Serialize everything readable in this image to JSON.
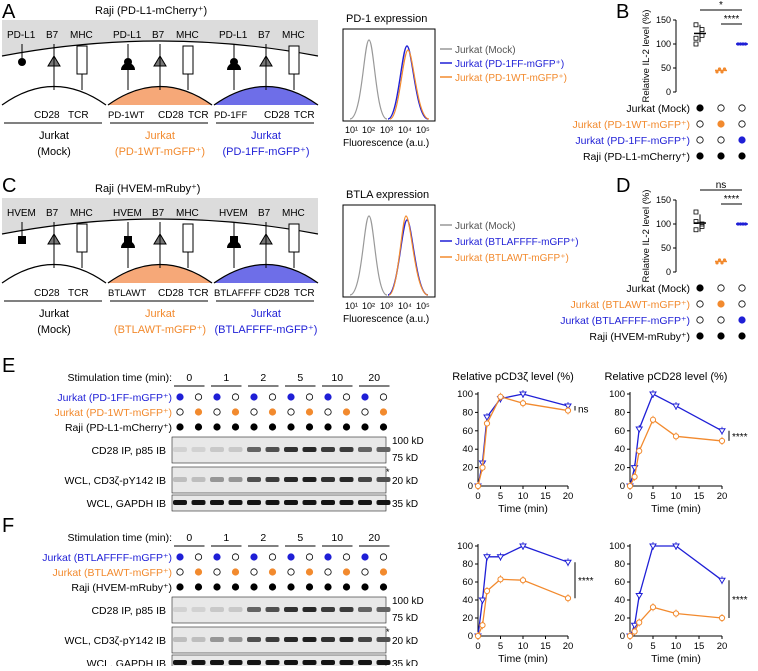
{
  "colors": {
    "blue": "#1f1fd6",
    "orange": "#f28a2e",
    "gray": "#999999",
    "light_gray": "#dcdcdc",
    "orange_fill": "#f6a878",
    "blue_fill": "#6e6ee8"
  },
  "panel_letters": [
    "A",
    "B",
    "C",
    "D",
    "E",
    "F"
  ],
  "panelA": {
    "raji_label": "Raji (PD-L1-mCherry⁺)",
    "cells": [
      {
        "top_labels": [
          "PD-L1",
          "B7",
          "MHC"
        ],
        "bottom_labels": [
          "CD28",
          "TCR"
        ],
        "name": [
          "Jurkat",
          "(Mock)"
        ]
      },
      {
        "top_labels": [
          "PD-L1",
          "B7",
          "MHC"
        ],
        "bottom_labels": [
          "PD-1WT",
          "CD28",
          "TCR"
        ],
        "name": [
          "Jurkat",
          "(PD-1WT-mGFP⁺)"
        ]
      },
      {
        "top_labels": [
          "PD-L1",
          "B7",
          "MHC"
        ],
        "bottom_labels": [
          "PD-1FF",
          "CD28",
          "TCR"
        ],
        "name": [
          "Jurkat",
          "(PD-1FF-mGFP⁺)"
        ]
      }
    ],
    "flow_title": "PD-1 expression",
    "flow_xlabel": "Fluorescence (a.u.)",
    "flow_ticks": [
      "10¹",
      "10²",
      "10³",
      "10⁴",
      "10⁵"
    ],
    "legend": [
      "Jurkat (Mock)",
      "Jurkat (PD-1FF-mGFP⁺)",
      "Jurkat (PD-1WT-mGFP⁺)"
    ]
  },
  "panelC": {
    "raji_label": "Raji (HVEM-mRuby⁺)",
    "cells": [
      {
        "top_labels": [
          "HVEM",
          "B7",
          "MHC"
        ],
        "bottom_labels": [
          "CD28",
          "TCR"
        ],
        "name": [
          "Jurkat",
          "(Mock)"
        ]
      },
      {
        "top_labels": [
          "HVEM",
          "B7",
          "MHC"
        ],
        "bottom_labels": [
          "BTLAWT",
          "CD28",
          "TCR"
        ],
        "name": [
          "Jurkat",
          "(BTLAWT-mGFP⁺)"
        ]
      },
      {
        "top_labels": [
          "HVEM",
          "B7",
          "MHC"
        ],
        "bottom_labels": [
          "BTLAFFFF",
          "CD28",
          "TCR"
        ],
        "name": [
          "Jurkat",
          "(BTLAFFFF-mGFP⁺)"
        ]
      }
    ],
    "flow_title": "BTLA expression",
    "flow_xlabel": "Fluorescence (a.u.)",
    "flow_ticks": [
      "10¹",
      "10²",
      "10³",
      "10⁴",
      "10⁵"
    ],
    "legend": [
      "Jurkat (Mock)",
      "Jurkat (BTLAFFFF-mGFP⁺)",
      "Jurkat (BTLAWT-mGFP⁺)"
    ]
  },
  "panelB": {
    "ylabel": "Relative IL-2 level (%)",
    "yticks": [
      "0",
      "50",
      "100",
      "150"
    ],
    "sig": [
      "*",
      "****"
    ],
    "rows": [
      "Jurkat (Mock)",
      "Jurkat (PD-1WT-mGFP⁺)",
      "Jurkat (PD-1FF-mGFP⁺)",
      "Raji (PD-L1-mCherry⁺)"
    ],
    "means": [
      122,
      45,
      100
    ],
    "mock_points": [
      140,
      130,
      112,
      118,
      100
    ]
  },
  "panelD": {
    "ylabel": "Relative IL-2 level (%)",
    "yticks": [
      "0",
      "50",
      "100",
      "150"
    ],
    "sig": [
      "ns",
      "****"
    ],
    "rows": [
      "Jurkat (Mock)",
      "Jurkat (BTLAWT-mGFP⁺)",
      "Jurkat (BTLAFFFF-mGFP⁺)",
      "Raji (HVEM-mRuby⁺)"
    ],
    "means": [
      102,
      22,
      100
    ],
    "mock_points": [
      125,
      100,
      88,
      95,
      105
    ]
  },
  "panelE": {
    "stim_label": "Stimulation time (min):",
    "times": [
      "0",
      "1",
      "2",
      "5",
      "10",
      "20"
    ],
    "row_labels": [
      "Jurkat (PD-1FF-mGFP⁺)",
      "Jurkat (PD-1WT-mGFP⁺)",
      "Raji (PD-L1-mCherry⁺)"
    ],
    "blot_labels": [
      "CD28 IP, p85 IB",
      "WCL, CD3ζ-pY142 IB",
      "WCL, GAPDH IB"
    ],
    "kd": [
      "100 kD",
      "75 kD",
      "20 kD",
      "35 kD"
    ],
    "star": "*"
  },
  "panelF": {
    "stim_label": "Stimulation time (min):",
    "times": [
      "0",
      "1",
      "2",
      "5",
      "10",
      "20"
    ],
    "row_labels": [
      "Jurkat (BTLAFFFF-mGFP⁺)",
      "Jurkat (BTLAWT-mGFP⁺)",
      "Raji (HVEM-mRuby⁺)"
    ],
    "blot_labels": [
      "CD28 IP, p85 IB",
      "WCL, CD3ζ-pY142 IB",
      "WCL, GAPDH IB"
    ],
    "kd": [
      "100 kD",
      "75 kD",
      "20 kD",
      "35 kD"
    ],
    "star": "*"
  },
  "chart_data": [
    {
      "type": "line",
      "title": "Relative pCD3ζ level (%)",
      "xlabel": "Time (min)",
      "ylabel": "",
      "x": [
        0,
        1,
        2,
        5,
        10,
        20
      ],
      "ylim": [
        0,
        100
      ],
      "xticks": [
        0,
        5,
        10,
        15,
        20
      ],
      "yticks": [
        0,
        20,
        40,
        60,
        80,
        100
      ],
      "annotation": "ns",
      "series": [
        {
          "color": "blue",
          "values": [
            0,
            25,
            75,
            95,
            100,
            87
          ]
        },
        {
          "color": "orange",
          "values": [
            0,
            20,
            68,
            97,
            90,
            82
          ]
        }
      ]
    },
    {
      "type": "line",
      "title": "Relative pCD28 level (%)",
      "xlabel": "Time (min)",
      "ylabel": "",
      "x": [
        0,
        1,
        2,
        5,
        10,
        20
      ],
      "ylim": [
        0,
        100
      ],
      "xticks": [
        0,
        5,
        10,
        15,
        20
      ],
      "yticks": [
        0,
        20,
        40,
        60,
        80,
        100
      ],
      "annotation": "****",
      "series": [
        {
          "color": "blue",
          "values": [
            0,
            20,
            62,
            100,
            87,
            60
          ]
        },
        {
          "color": "orange",
          "values": [
            0,
            10,
            38,
            72,
            54,
            49
          ]
        }
      ]
    },
    {
      "type": "line",
      "title": "",
      "xlabel": "Time (min)",
      "ylabel": "",
      "x": [
        0,
        1,
        2,
        5,
        10,
        20
      ],
      "ylim": [
        0,
        100
      ],
      "xticks": [
        0,
        5,
        10,
        15,
        20
      ],
      "yticks": [
        0,
        20,
        40,
        60,
        80,
        100
      ],
      "annotation": "****",
      "series": [
        {
          "color": "blue",
          "values": [
            0,
            40,
            88,
            88,
            100,
            82
          ]
        },
        {
          "color": "orange",
          "values": [
            0,
            12,
            50,
            63,
            62,
            42
          ]
        }
      ]
    },
    {
      "type": "line",
      "title": "",
      "xlabel": "Time (min)",
      "ylabel": "",
      "x": [
        0,
        1,
        2,
        5,
        10,
        20
      ],
      "ylim": [
        0,
        100
      ],
      "xticks": [
        0,
        5,
        10,
        15,
        20
      ],
      "yticks": [
        0,
        20,
        40,
        60,
        80,
        100
      ],
      "annotation": "****",
      "series": [
        {
          "color": "blue",
          "values": [
            0,
            12,
            45,
            100,
            100,
            62
          ]
        },
        {
          "color": "orange",
          "values": [
            0,
            5,
            15,
            32,
            25,
            20
          ]
        }
      ]
    }
  ]
}
